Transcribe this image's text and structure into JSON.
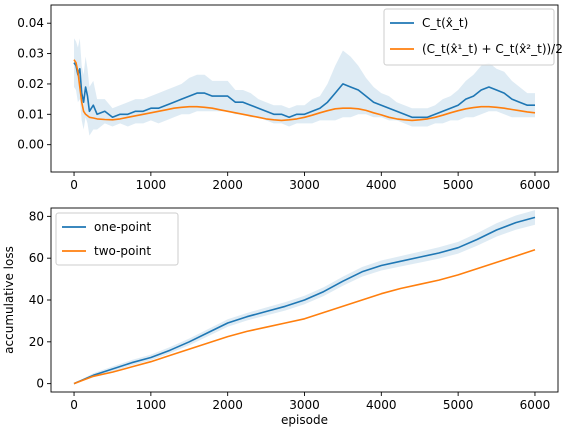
{
  "chart_data": [
    {
      "type": "line",
      "title": "",
      "xlabel": "",
      "ylabel": "",
      "xlim": [
        -300,
        6300
      ],
      "ylim": [
        -0.009,
        0.046
      ],
      "x_ticks": [
        "0",
        "1000",
        "2000",
        "3000",
        "4000",
        "5000",
        "6000"
      ],
      "y_ticks": [
        "0.00",
        "0.01",
        "0.02",
        "0.03",
        "0.04"
      ],
      "x_tick_values": [
        0,
        1000,
        2000,
        3000,
        4000,
        5000,
        6000
      ],
      "y_tick_values": [
        0,
        0.01,
        0.02,
        0.03,
        0.04
      ],
      "grid": false,
      "legend_position": "top-right",
      "x": [
        0,
        25,
        50,
        75,
        100,
        125,
        150,
        175,
        200,
        250,
        300,
        400,
        500,
        600,
        700,
        800,
        900,
        1000,
        1100,
        1200,
        1300,
        1400,
        1500,
        1600,
        1700,
        1800,
        1900,
        2000,
        2100,
        2200,
        2300,
        2400,
        2500,
        2600,
        2700,
        2800,
        2900,
        3000,
        3100,
        3200,
        3300,
        3400,
        3500,
        3600,
        3700,
        3800,
        3900,
        4000,
        4100,
        4200,
        4300,
        4400,
        4500,
        4600,
        4700,
        4800,
        4900,
        5000,
        5100,
        5200,
        5300,
        5400,
        5500,
        5600,
        5700,
        5800,
        5900,
        6000
      ],
      "series": [
        {
          "name": "C_t(x̂_t)",
          "color": "#1f77b4",
          "values": [
            0.027,
            0.026,
            0.023,
            0.025,
            0.017,
            0.014,
            0.019,
            0.016,
            0.011,
            0.013,
            0.01,
            0.011,
            0.009,
            0.01,
            0.01,
            0.011,
            0.011,
            0.012,
            0.012,
            0.013,
            0.014,
            0.015,
            0.016,
            0.017,
            0.017,
            0.016,
            0.016,
            0.016,
            0.014,
            0.014,
            0.013,
            0.012,
            0.011,
            0.01,
            0.01,
            0.009,
            0.01,
            0.01,
            0.011,
            0.012,
            0.014,
            0.017,
            0.02,
            0.019,
            0.018,
            0.016,
            0.014,
            0.013,
            0.012,
            0.011,
            0.01,
            0.009,
            0.009,
            0.009,
            0.01,
            0.011,
            0.012,
            0.013,
            0.015,
            0.016,
            0.018,
            0.019,
            0.018,
            0.017,
            0.015,
            0.014,
            0.013,
            0.013
          ],
          "band_halfwidth": [
            0.008,
            0.008,
            0.009,
            0.01,
            0.009,
            0.009,
            0.01,
            0.009,
            0.008,
            0.008,
            0.005,
            0.004,
            0.003,
            0.003,
            0.004,
            0.004,
            0.004,
            0.004,
            0.005,
            0.005,
            0.005,
            0.005,
            0.006,
            0.006,
            0.006,
            0.005,
            0.005,
            0.005,
            0.004,
            0.004,
            0.004,
            0.003,
            0.003,
            0.003,
            0.003,
            0.003,
            0.003,
            0.003,
            0.004,
            0.004,
            0.006,
            0.009,
            0.011,
            0.01,
            0.008,
            0.006,
            0.005,
            0.004,
            0.004,
            0.003,
            0.003,
            0.003,
            0.003,
            0.003,
            0.003,
            0.004,
            0.004,
            0.005,
            0.006,
            0.007,
            0.008,
            0.008,
            0.007,
            0.007,
            0.006,
            0.005,
            0.004,
            0.004
          ]
        },
        {
          "name": "(C_t(x̂¹_t) + C_t(x̂²_t))/2",
          "color": "#ff7f0e",
          "values": [
            0.028,
            0.027,
            0.024,
            0.019,
            0.014,
            0.011,
            0.01,
            0.0095,
            0.009,
            0.0088,
            0.0085,
            0.0083,
            0.0082,
            0.0085,
            0.009,
            0.0095,
            0.01,
            0.0105,
            0.011,
            0.0115,
            0.012,
            0.0123,
            0.0125,
            0.0125,
            0.0123,
            0.012,
            0.0115,
            0.011,
            0.0105,
            0.01,
            0.0095,
            0.009,
            0.0085,
            0.0082,
            0.008,
            0.0082,
            0.0085,
            0.009,
            0.0097,
            0.0105,
            0.0112,
            0.0118,
            0.012,
            0.012,
            0.0118,
            0.0113,
            0.0105,
            0.0098,
            0.009,
            0.0085,
            0.0082,
            0.008,
            0.0082,
            0.0085,
            0.009,
            0.0097,
            0.0105,
            0.0112,
            0.0118,
            0.0122,
            0.0125,
            0.0125,
            0.0123,
            0.012,
            0.0116,
            0.0112,
            0.0108,
            0.0105
          ]
        }
      ]
    },
    {
      "type": "line",
      "title": "",
      "xlabel": "episode",
      "ylabel": "accumulative loss",
      "xlim": [
        -300,
        6300
      ],
      "ylim": [
        -4,
        84
      ],
      "x_ticks": [
        "0",
        "1000",
        "2000",
        "3000",
        "4000",
        "5000",
        "6000"
      ],
      "y_ticks": [
        "0",
        "20",
        "40",
        "60",
        "80"
      ],
      "x_tick_values": [
        0,
        1000,
        2000,
        3000,
        4000,
        5000,
        6000
      ],
      "y_tick_values": [
        0,
        20,
        40,
        60,
        80
      ],
      "grid": false,
      "legend_position": "top-left",
      "x": [
        0,
        250,
        500,
        750,
        1000,
        1250,
        1500,
        1750,
        2000,
        2250,
        2500,
        2750,
        3000,
        3250,
        3500,
        3750,
        4000,
        4250,
        4500,
        4750,
        5000,
        5250,
        5500,
        5750,
        6000
      ],
      "series": [
        {
          "name": "one-point",
          "color": "#1f77b4",
          "values": [
            0,
            4,
            7,
            10,
            12.5,
            16,
            20,
            24.5,
            29,
            32,
            34.5,
            37,
            40,
            44,
            49,
            53.5,
            56.5,
            58.5,
            60.5,
            62.5,
            65,
            69,
            73.5,
            77,
            79.5
          ],
          "band_halfwidth": [
            0,
            1,
            1.2,
            1.3,
            1.4,
            1.5,
            1.6,
            1.7,
            1.8,
            1.8,
            1.9,
            2,
            2,
            2.1,
            2.2,
            2.3,
            2.4,
            2.5,
            2.6,
            2.7,
            2.8,
            3,
            3.2,
            3.4,
            3.5
          ]
        },
        {
          "name": "two-point",
          "color": "#ff7f0e",
          "values": [
            0,
            3.5,
            5.5,
            8,
            10.5,
            13.5,
            16.5,
            19.5,
            22.5,
            25,
            27,
            29,
            31,
            34,
            37,
            40,
            43,
            45.5,
            47.5,
            49.5,
            52,
            55,
            58,
            61,
            64
          ]
        }
      ]
    }
  ]
}
